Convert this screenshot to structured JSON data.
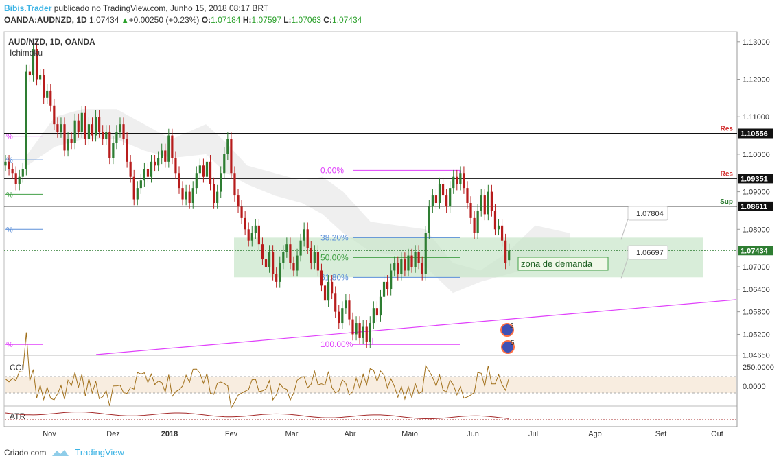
{
  "header": {
    "author": "Bibis.Trader",
    "published_text": "publicado no TradingView.com, Junho 15, 2018 08:17 BRT",
    "symbol": "OANDA:AUDNZD, 1D",
    "last": "1.07434",
    "change": "+0.00250 (+0.23%)",
    "open_label": "O:",
    "open": "1.07184",
    "high_label": "H:",
    "high": "1.07597",
    "low_label": "L:",
    "low": "1.07063",
    "close_label": "C:",
    "close": "1.07434"
  },
  "pane_title": "AUD/NZD, 1D, OANDA",
  "indicator_label": "Ichimoku",
  "footer": {
    "created_with": "Criado com",
    "brand": "TradingView"
  },
  "colors": {
    "up": "#2e7d32",
    "down": "#b71c1c",
    "fib": "#e040fb",
    "fib_blue": "#5b8fd9",
    "fib_green": "#43a047",
    "zone": "#c8e6c9",
    "cloud": "#e0e0e0",
    "res": "#d32f2f",
    "sup": "#2e7d32",
    "cci_band": "#f5e6d3",
    "cci_line": "#a1701b",
    "atr_line": "#a52a2a"
  },
  "chart_data": {
    "type": "candlestick",
    "y_axis": {
      "min": 1.043,
      "max": 1.133,
      "ticks": [
        "1.13000",
        "1.12000",
        "1.11000",
        "1.10000",
        "1.09000",
        "1.08000",
        "1.07000",
        "1.06400",
        "1.05800",
        "1.05200",
        "1.04650"
      ]
    },
    "x_axis": {
      "labels": [
        "Nov",
        "Dez",
        "2018",
        "Fev",
        "Mar",
        "Abr",
        "Maio",
        "Jun",
        "Jul",
        "Ago",
        "Set",
        "Out"
      ]
    },
    "price_levels": [
      {
        "value": 1.10556,
        "label": "1.10556",
        "tag": "Res"
      },
      {
        "value": 1.09351,
        "label": "1.09351",
        "tag": "Res"
      },
      {
        "value": 1.08611,
        "label": "1.08611",
        "tag": "Sup"
      },
      {
        "value": 1.07434,
        "label": "1.07434",
        "tag": ""
      }
    ],
    "fibonacci": [
      {
        "level": "0.00%",
        "price": 1.0957
      },
      {
        "level": "38.20%",
        "price": 1.0778
      },
      {
        "level": "50.00%",
        "price": 1.0725
      },
      {
        "level": "61.80%",
        "price": 1.0672
      },
      {
        "level": "100.00%",
        "price": 1.0493
      }
    ],
    "zone": {
      "label": "zona de demanda",
      "top": 1.0778,
      "bottom": 1.0672
    },
    "callouts": [
      "1.07804",
      "1.06697"
    ],
    "event_badges": [
      "2",
      "5"
    ],
    "candles": [
      {
        "o": 1.097,
        "c": 1.098
      },
      {
        "o": 1.098,
        "c": 1.096
      },
      {
        "o": 1.096,
        "c": 1.095
      },
      {
        "o": 1.095,
        "c": 1.092
      },
      {
        "o": 1.092,
        "c": 1.094
      },
      {
        "o": 1.094,
        "c": 1.096
      },
      {
        "o": 1.096,
        "c": 1.122
      },
      {
        "o": 1.122,
        "c": 1.121
      },
      {
        "o": 1.121,
        "c": 1.128
      },
      {
        "o": 1.128,
        "c": 1.12
      },
      {
        "o": 1.12,
        "c": 1.121
      },
      {
        "o": 1.121,
        "c": 1.115
      },
      {
        "o": 1.115,
        "c": 1.117
      },
      {
        "o": 1.117,
        "c": 1.113
      },
      {
        "o": 1.113,
        "c": 1.108
      },
      {
        "o": 1.108,
        "c": 1.106
      },
      {
        "o": 1.106,
        "c": 1.108
      },
      {
        "o": 1.108,
        "c": 1.101
      },
      {
        "o": 1.101,
        "c": 1.104
      },
      {
        "o": 1.104,
        "c": 1.103
      },
      {
        "o": 1.103,
        "c": 1.109
      },
      {
        "o": 1.109,
        "c": 1.106
      },
      {
        "o": 1.106,
        "c": 1.111
      },
      {
        "o": 1.111,
        "c": 1.104
      },
      {
        "o": 1.104,
        "c": 1.108
      },
      {
        "o": 1.108,
        "c": 1.105
      },
      {
        "o": 1.105,
        "c": 1.11
      },
      {
        "o": 1.11,
        "c": 1.106
      },
      {
        "o": 1.106,
        "c": 1.104
      },
      {
        "o": 1.104,
        "c": 1.106
      },
      {
        "o": 1.106,
        "c": 1.099
      },
      {
        "o": 1.099,
        "c": 1.103
      },
      {
        "o": 1.103,
        "c": 1.106
      },
      {
        "o": 1.106,
        "c": 1.108
      },
      {
        "o": 1.108,
        "c": 1.104
      },
      {
        "o": 1.104,
        "c": 1.098
      },
      {
        "o": 1.098,
        "c": 1.094
      },
      {
        "o": 1.094,
        "c": 1.088
      },
      {
        "o": 1.088,
        "c": 1.091
      },
      {
        "o": 1.091,
        "c": 1.093
      },
      {
        "o": 1.093,
        "c": 1.096
      },
      {
        "o": 1.096,
        "c": 1.094
      },
      {
        "o": 1.094,
        "c": 1.098
      },
      {
        "o": 1.098,
        "c": 1.097
      },
      {
        "o": 1.097,
        "c": 1.099
      },
      {
        "o": 1.099,
        "c": 1.101
      },
      {
        "o": 1.101,
        "c": 1.098
      },
      {
        "o": 1.098,
        "c": 1.105
      },
      {
        "o": 1.105,
        "c": 1.099
      },
      {
        "o": 1.099,
        "c": 1.095
      },
      {
        "o": 1.095,
        "c": 1.091
      },
      {
        "o": 1.091,
        "c": 1.088
      },
      {
        "o": 1.088,
        "c": 1.09
      },
      {
        "o": 1.09,
        "c": 1.087
      },
      {
        "o": 1.087,
        "c": 1.091
      },
      {
        "o": 1.091,
        "c": 1.095
      },
      {
        "o": 1.095,
        "c": 1.097
      },
      {
        "o": 1.097,
        "c": 1.094
      },
      {
        "o": 1.094,
        "c": 1.098
      },
      {
        "o": 1.098,
        "c": 1.092
      },
      {
        "o": 1.092,
        "c": 1.087
      },
      {
        "o": 1.087,
        "c": 1.09
      },
      {
        "o": 1.09,
        "c": 1.095
      },
      {
        "o": 1.095,
        "c": 1.1
      },
      {
        "o": 1.1,
        "c": 1.104
      },
      {
        "o": 1.104,
        "c": 1.095
      },
      {
        "o": 1.095,
        "c": 1.089
      },
      {
        "o": 1.089,
        "c": 1.086
      },
      {
        "o": 1.086,
        "c": 1.083
      },
      {
        "o": 1.083,
        "c": 1.08
      },
      {
        "o": 1.08,
        "c": 1.077
      },
      {
        "o": 1.077,
        "c": 1.079
      },
      {
        "o": 1.079,
        "c": 1.081
      },
      {
        "o": 1.081,
        "c": 1.076
      },
      {
        "o": 1.076,
        "c": 1.072
      },
      {
        "o": 1.072,
        "c": 1.07
      },
      {
        "o": 1.07,
        "c": 1.074
      },
      {
        "o": 1.074,
        "c": 1.068
      },
      {
        "o": 1.068,
        "c": 1.066
      },
      {
        "o": 1.066,
        "c": 1.071
      },
      {
        "o": 1.071,
        "c": 1.074
      },
      {
        "o": 1.074,
        "c": 1.076
      },
      {
        "o": 1.076,
        "c": 1.071
      },
      {
        "o": 1.071,
        "c": 1.069
      },
      {
        "o": 1.069,
        "c": 1.073
      },
      {
        "o": 1.073,
        "c": 1.077
      },
      {
        "o": 1.077,
        "c": 1.08
      },
      {
        "o": 1.08,
        "c": 1.075
      },
      {
        "o": 1.075,
        "c": 1.071
      },
      {
        "o": 1.071,
        "c": 1.074
      },
      {
        "o": 1.074,
        "c": 1.069
      },
      {
        "o": 1.069,
        "c": 1.065
      },
      {
        "o": 1.065,
        "c": 1.061
      },
      {
        "o": 1.061,
        "c": 1.066
      },
      {
        "o": 1.066,
        "c": 1.063
      },
      {
        "o": 1.063,
        "c": 1.058
      },
      {
        "o": 1.058,
        "c": 1.055
      },
      {
        "o": 1.055,
        "c": 1.059
      },
      {
        "o": 1.059,
        "c": 1.061
      },
      {
        "o": 1.061,
        "c": 1.056
      },
      {
        "o": 1.056,
        "c": 1.052
      },
      {
        "o": 1.052,
        "c": 1.055
      },
      {
        "o": 1.055,
        "c": 1.051
      },
      {
        "o": 1.051,
        "c": 1.054
      },
      {
        "o": 1.054,
        "c": 1.05
      },
      {
        "o": 1.05,
        "c": 1.055
      },
      {
        "o": 1.055,
        "c": 1.059
      },
      {
        "o": 1.059,
        "c": 1.057
      },
      {
        "o": 1.057,
        "c": 1.062
      },
      {
        "o": 1.062,
        "c": 1.066
      },
      {
        "o": 1.066,
        "c": 1.064
      },
      {
        "o": 1.064,
        "c": 1.069
      },
      {
        "o": 1.069,
        "c": 1.071
      },
      {
        "o": 1.071,
        "c": 1.068
      },
      {
        "o": 1.068,
        "c": 1.072
      },
      {
        "o": 1.072,
        "c": 1.069
      },
      {
        "o": 1.069,
        "c": 1.073
      },
      {
        "o": 1.073,
        "c": 1.07
      },
      {
        "o": 1.07,
        "c": 1.074
      },
      {
        "o": 1.074,
        "c": 1.071
      },
      {
        "o": 1.071,
        "c": 1.068
      },
      {
        "o": 1.068,
        "c": 1.079
      },
      {
        "o": 1.079,
        "c": 1.086
      },
      {
        "o": 1.086,
        "c": 1.089
      },
      {
        "o": 1.089,
        "c": 1.087
      },
      {
        "o": 1.087,
        "c": 1.092
      },
      {
        "o": 1.092,
        "c": 1.089
      },
      {
        "o": 1.089,
        "c": 1.086
      },
      {
        "o": 1.086,
        "c": 1.091
      },
      {
        "o": 1.091,
        "c": 1.094
      },
      {
        "o": 1.094,
        "c": 1.092
      },
      {
        "o": 1.092,
        "c": 1.095
      },
      {
        "o": 1.095,
        "c": 1.091
      },
      {
        "o": 1.091,
        "c": 1.087
      },
      {
        "o": 1.087,
        "c": 1.083
      },
      {
        "o": 1.083,
        "c": 1.079
      },
      {
        "o": 1.079,
        "c": 1.085
      },
      {
        "o": 1.085,
        "c": 1.089
      },
      {
        "o": 1.089,
        "c": 1.084
      },
      {
        "o": 1.084,
        "c": 1.09
      },
      {
        "o": 1.09,
        "c": 1.085
      },
      {
        "o": 1.085,
        "c": 1.08
      },
      {
        "o": 1.08,
        "c": 1.081
      },
      {
        "o": 1.081,
        "c": 1.077
      },
      {
        "o": 1.077,
        "c": 1.071
      },
      {
        "o": 1.0718,
        "c": 1.0743
      }
    ],
    "cci": {
      "label": "CCI",
      "ticks": [
        "250.0000",
        "0.0000"
      ]
    },
    "atr": {
      "label": "ATR"
    }
  }
}
